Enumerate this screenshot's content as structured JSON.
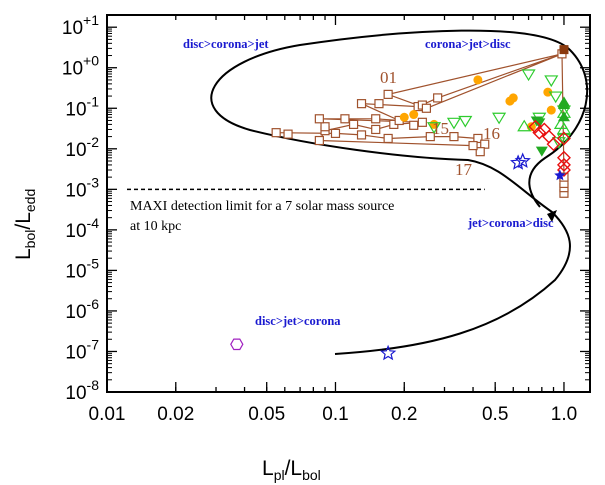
{
  "chart_data": {
    "type": "scatter",
    "xscale": "log",
    "yscale": "log",
    "xlim": [
      0.01,
      1.3
    ],
    "ylim": [
      1e-08,
      20
    ],
    "xlabel": {
      "main": "L",
      "sub1": "pl",
      "sep": "/L",
      "sub2": "bol"
    },
    "ylabel": {
      "main": "L",
      "sub1": "bol",
      "sep": "/L",
      "sub2": "edd"
    },
    "xticks": [
      {
        "v": 0.01,
        "label": "0.01"
      },
      {
        "v": 0.02,
        "label": "0.02"
      },
      {
        "v": 0.05,
        "label": "0.05"
      },
      {
        "v": 0.1,
        "label": "0.1"
      },
      {
        "v": 0.2,
        "label": "0.2"
      },
      {
        "v": 0.5,
        "label": "0.5"
      },
      {
        "v": 1.0,
        "label": "1.0"
      }
    ],
    "yticks": [
      {
        "e": 1,
        "exp": "+1"
      },
      {
        "e": 0,
        "exp": "+0"
      },
      {
        "e": -1,
        "exp": "-1"
      },
      {
        "e": -2,
        "exp": "-2"
      },
      {
        "e": -3,
        "exp": "-3"
      },
      {
        "e": -4,
        "exp": "-4"
      },
      {
        "e": -5,
        "exp": "-5"
      },
      {
        "e": -6,
        "exp": "-6"
      },
      {
        "e": -7,
        "exp": "-7"
      },
      {
        "e": -8,
        "exp": "-8"
      }
    ],
    "ytick_base": "10",
    "annotations": {
      "disc_corona_jet": "disc>corona>jet",
      "corona_jet_disc": "corona>jet>disc",
      "jet_corona_disc": "jet>corona>disc",
      "disc_jet_corona": "disc>jet>corona",
      "maxi_line1": "MAXI detection limit for a 7 solar mass source",
      "maxi_line2": "at 10 kpc",
      "label_01": "01",
      "label_15": "15",
      "label_16": "16",
      "label_17": "17"
    },
    "maxi_limit": {
      "y": 0.001,
      "x_range": [
        0.01,
        0.45
      ]
    },
    "series": [
      {
        "marker": "open-square",
        "color": "#a0522d",
        "points": [
          [
            0.055,
            0.025
          ],
          [
            0.062,
            0.023
          ],
          [
            0.1,
            0.024
          ],
          [
            0.13,
            0.022
          ],
          [
            0.17,
            0.018
          ],
          [
            0.26,
            0.02
          ],
          [
            0.33,
            0.02
          ],
          [
            0.42,
            0.018
          ],
          [
            0.45,
            0.013
          ],
          [
            0.43,
            0.0085
          ],
          [
            0.4,
            0.012
          ],
          [
            0.085,
            0.016
          ],
          [
            0.09,
            0.028
          ],
          [
            0.09,
            0.035
          ],
          [
            0.12,
            0.04
          ],
          [
            0.15,
            0.03
          ],
          [
            0.18,
            0.04
          ],
          [
            0.22,
            0.038
          ],
          [
            0.24,
            0.045
          ],
          [
            0.085,
            0.055
          ],
          [
            0.11,
            0.055
          ],
          [
            0.15,
            0.055
          ],
          [
            0.19,
            0.05
          ],
          [
            0.13,
            0.13
          ],
          [
            0.155,
            0.13
          ],
          [
            0.23,
            0.11
          ],
          [
            0.24,
            0.12
          ],
          [
            0.25,
            0.1
          ],
          [
            0.28,
            0.18
          ],
          [
            0.17,
            0.22
          ],
          [
            0.98,
            2.2
          ],
          [
            1.0,
            0.0008
          ],
          [
            1.0,
            0.0011
          ],
          [
            1.0,
            0.0014
          ],
          [
            1.0,
            0.002
          ]
        ]
      },
      {
        "marker": "filled-square",
        "color": "#8b3a0e",
        "points": [
          [
            1.0,
            2.8
          ]
        ]
      },
      {
        "marker": "filled-circle",
        "color": "#ffa500",
        "points": [
          [
            0.2,
            0.06
          ],
          [
            0.22,
            0.07
          ],
          [
            0.27,
            0.04
          ],
          [
            0.42,
            0.5
          ],
          [
            0.58,
            0.15
          ],
          [
            0.6,
            0.18
          ],
          [
            0.72,
            0.035
          ],
          [
            0.85,
            0.25
          ],
          [
            0.88,
            0.09
          ]
        ]
      },
      {
        "marker": "open-triangle-down",
        "color": "#2ecc2e",
        "points": [
          [
            0.27,
            0.035
          ],
          [
            0.33,
            0.045
          ],
          [
            0.37,
            0.05
          ],
          [
            0.52,
            0.06
          ],
          [
            0.7,
            0.7
          ],
          [
            0.78,
            0.06
          ],
          [
            0.88,
            0.5
          ],
          [
            0.92,
            0.2
          ],
          [
            1.0,
            0.09
          ],
          [
            1.0,
            0.018
          ],
          [
            0.95,
            0.015
          ]
        ]
      },
      {
        "marker": "filled-triangle-down",
        "color": "#22aa22",
        "points": [
          [
            0.76,
            0.05
          ],
          [
            0.8,
            0.009
          ],
          [
            0.78,
            0.045
          ]
        ]
      },
      {
        "marker": "open-triangle-up",
        "color": "#2ecc2e",
        "points": [
          [
            0.67,
            0.035
          ],
          [
            0.97,
            0.04
          ],
          [
            1.0,
            0.03
          ],
          [
            1.0,
            0.075
          ]
        ]
      },
      {
        "marker": "filled-triangle-up",
        "color": "#22aa22",
        "points": [
          [
            1.0,
            0.12
          ],
          [
            1.0,
            0.14
          ],
          [
            1.0,
            0.06
          ]
        ]
      },
      {
        "marker": "open-diamond",
        "color": "#e81010",
        "points": [
          [
            0.75,
            0.035
          ],
          [
            0.78,
            0.025
          ],
          [
            0.82,
            0.03
          ],
          [
            0.86,
            0.02
          ],
          [
            0.9,
            0.013
          ],
          [
            1.0,
            0.006
          ],
          [
            1.0,
            0.004
          ],
          [
            1.0,
            0.003
          ],
          [
            1.0,
            0.018
          ]
        ]
      },
      {
        "marker": "open-star",
        "color": "#1a1ad0",
        "points": [
          [
            0.63,
            0.0045
          ],
          [
            0.66,
            0.005
          ],
          [
            0.17,
            9e-08
          ]
        ]
      },
      {
        "marker": "filled-star",
        "color": "#1a1ad0",
        "points": [
          [
            0.96,
            0.0022
          ]
        ]
      },
      {
        "marker": "open-hexagon",
        "color": "#a020c0",
        "points": [
          [
            0.037,
            1.5e-07
          ]
        ]
      }
    ],
    "connected_path": [
      [
        0.055,
        0.025
      ],
      [
        0.1,
        0.024
      ],
      [
        0.13,
        0.022
      ],
      [
        0.17,
        0.018
      ],
      [
        0.26,
        0.02
      ],
      [
        0.33,
        0.02
      ],
      [
        0.42,
        0.018
      ],
      [
        0.45,
        0.013
      ],
      [
        0.43,
        0.0085
      ],
      [
        0.4,
        0.012
      ],
      [
        0.085,
        0.016
      ],
      [
        0.09,
        0.028
      ],
      [
        0.12,
        0.04
      ],
      [
        0.15,
        0.03
      ],
      [
        0.18,
        0.04
      ],
      [
        0.24,
        0.045
      ],
      [
        0.085,
        0.055
      ],
      [
        0.15,
        0.055
      ],
      [
        0.19,
        0.05
      ],
      [
        0.13,
        0.13
      ],
      [
        0.23,
        0.11
      ],
      [
        0.28,
        0.18
      ],
      [
        0.98,
        2.2
      ],
      [
        0.25,
        0.1
      ],
      [
        0.17,
        0.22
      ],
      [
        0.98,
        2.2
      ],
      [
        1.0,
        0.002
      ],
      [
        1.0,
        0.0014
      ],
      [
        1.0,
        0.0011
      ],
      [
        1.0,
        0.0008
      ]
    ]
  }
}
